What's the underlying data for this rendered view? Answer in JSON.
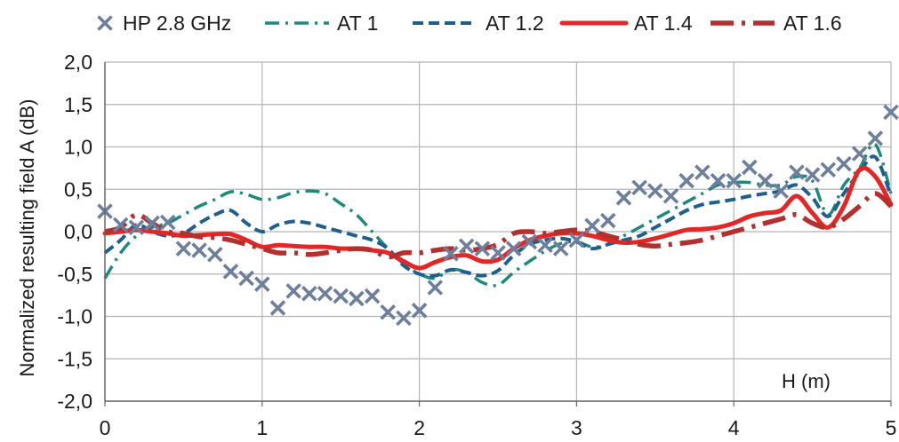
{
  "chart_data": {
    "type": "line",
    "title": "",
    "xlabel": "H (m)",
    "ylabel": "Normalized resulting field A (dB)",
    "xlim": [
      0,
      5
    ],
    "ylim": [
      -2.0,
      2.0
    ],
    "x_ticks": [
      0,
      1,
      2,
      3,
      4,
      5
    ],
    "x_tick_labels": [
      "0",
      "1",
      "2",
      "3",
      "4",
      "5"
    ],
    "y_ticks": [
      2.0,
      1.5,
      1.0,
      0.5,
      0.0,
      -0.5,
      -1.0,
      -1.5,
      -2.0
    ],
    "y_tick_labels": [
      "2,0",
      "1,5",
      "1,0",
      "0,5",
      "0,0",
      "-0,5",
      "-1,0",
      "-1,5",
      "-2,0"
    ],
    "grid": true,
    "legend_position": "top",
    "series": [
      {
        "name": "HP 2.8 GHz",
        "style": "markers-x",
        "color": "#6d7f9c",
        "x": [
          0.0,
          0.1,
          0.2,
          0.3,
          0.4,
          0.5,
          0.6,
          0.7,
          0.8,
          0.9,
          1.0,
          1.1,
          1.2,
          1.3,
          1.4,
          1.5,
          1.6,
          1.7,
          1.8,
          1.9,
          2.0,
          2.1,
          2.2,
          2.3,
          2.4,
          2.5,
          2.6,
          2.7,
          2.8,
          2.9,
          3.0,
          3.1,
          3.2,
          3.3,
          3.4,
          3.5,
          3.6,
          3.7,
          3.8,
          3.9,
          4.0,
          4.1,
          4.2,
          4.3,
          4.4,
          4.5,
          4.6,
          4.7,
          4.8,
          4.9,
          5.0
        ],
        "y": [
          0.24,
          0.08,
          0.05,
          0.1,
          0.11,
          -0.2,
          -0.22,
          -0.27,
          -0.47,
          -0.55,
          -0.62,
          -0.9,
          -0.7,
          -0.73,
          -0.73,
          -0.76,
          -0.79,
          -0.76,
          -0.95,
          -1.02,
          -0.93,
          -0.66,
          -0.26,
          -0.17,
          -0.2,
          -0.25,
          -0.2,
          -0.12,
          -0.16,
          -0.2,
          -0.1,
          0.07,
          0.13,
          0.4,
          0.52,
          0.48,
          0.42,
          0.6,
          0.7,
          0.6,
          0.6,
          0.76,
          0.6,
          0.48,
          0.7,
          0.67,
          0.73,
          0.8,
          0.92,
          1.1,
          1.41
        ]
      },
      {
        "name": "AT 1",
        "style": "dash-dot",
        "color": "#1c8a7c",
        "x": [
          0.0,
          0.1,
          0.2,
          0.3,
          0.4,
          0.5,
          0.6,
          0.7,
          0.8,
          0.9,
          1.0,
          1.1,
          1.2,
          1.3,
          1.4,
          1.5,
          1.6,
          1.7,
          1.8,
          1.9,
          2.0,
          2.1,
          2.2,
          2.3,
          2.4,
          2.5,
          2.6,
          2.7,
          2.8,
          2.9,
          3.0,
          3.1,
          3.2,
          3.3,
          3.4,
          3.5,
          3.6,
          3.7,
          3.8,
          3.9,
          4.0,
          4.1,
          4.2,
          4.3,
          4.4,
          4.5,
          4.6,
          4.7,
          4.8,
          4.9,
          5.0
        ],
        "y": [
          -0.55,
          -0.25,
          -0.05,
          0.05,
          0.1,
          0.2,
          0.3,
          0.38,
          0.47,
          0.44,
          0.38,
          0.4,
          0.46,
          0.48,
          0.45,
          0.33,
          0.2,
          0.0,
          -0.2,
          -0.38,
          -0.5,
          -0.55,
          -0.45,
          -0.48,
          -0.6,
          -0.63,
          -0.48,
          -0.35,
          -0.23,
          -0.14,
          -0.12,
          -0.18,
          -0.15,
          -0.05,
          0.05,
          0.15,
          0.25,
          0.35,
          0.45,
          0.55,
          0.58,
          0.58,
          0.55,
          0.55,
          0.65,
          0.6,
          0.2,
          0.55,
          0.75,
          1.03,
          0.45
        ]
      },
      {
        "name": "AT 1.2",
        "style": "dashed",
        "color": "#1f5f8f",
        "x": [
          0.0,
          0.1,
          0.2,
          0.3,
          0.4,
          0.5,
          0.6,
          0.7,
          0.8,
          0.9,
          1.0,
          1.1,
          1.2,
          1.3,
          1.4,
          1.5,
          1.6,
          1.7,
          1.8,
          1.9,
          2.0,
          2.1,
          2.2,
          2.3,
          2.4,
          2.5,
          2.6,
          2.7,
          2.8,
          2.9,
          3.0,
          3.1,
          3.2,
          3.3,
          3.4,
          3.5,
          3.6,
          3.7,
          3.8,
          3.9,
          4.0,
          4.1,
          4.2,
          4.3,
          4.4,
          4.5,
          4.6,
          4.7,
          4.8,
          4.9,
          5.0
        ],
        "y": [
          -0.25,
          -0.1,
          0.08,
          0.0,
          -0.05,
          -0.02,
          0.1,
          0.2,
          0.25,
          0.1,
          0.0,
          0.08,
          0.12,
          0.1,
          0.05,
          0.0,
          -0.05,
          -0.1,
          -0.2,
          -0.4,
          -0.5,
          -0.52,
          -0.45,
          -0.48,
          -0.52,
          -0.46,
          -0.28,
          -0.15,
          -0.1,
          -0.08,
          -0.12,
          -0.2,
          -0.15,
          -0.1,
          -0.05,
          0.05,
          0.15,
          0.25,
          0.32,
          0.35,
          0.38,
          0.42,
          0.45,
          0.48,
          0.55,
          0.4,
          0.18,
          0.45,
          0.7,
          0.88,
          0.42
        ]
      },
      {
        "name": "AT 1.4",
        "style": "solid",
        "color": "#e32626",
        "x": [
          0.0,
          0.1,
          0.2,
          0.3,
          0.4,
          0.5,
          0.6,
          0.7,
          0.8,
          0.9,
          1.0,
          1.1,
          1.2,
          1.3,
          1.4,
          1.5,
          1.6,
          1.7,
          1.8,
          1.9,
          2.0,
          2.1,
          2.2,
          2.3,
          2.4,
          2.5,
          2.6,
          2.7,
          2.8,
          2.9,
          3.0,
          3.1,
          3.2,
          3.3,
          3.4,
          3.5,
          3.6,
          3.7,
          3.8,
          3.9,
          4.0,
          4.1,
          4.2,
          4.3,
          4.4,
          4.5,
          4.6,
          4.7,
          4.8,
          4.9,
          5.0
        ],
        "y": [
          -0.02,
          0.0,
          0.02,
          0.0,
          -0.02,
          -0.05,
          -0.04,
          -0.03,
          -0.03,
          -0.1,
          -0.18,
          -0.16,
          -0.17,
          -0.18,
          -0.18,
          -0.2,
          -0.2,
          -0.22,
          -0.25,
          -0.35,
          -0.43,
          -0.36,
          -0.3,
          -0.28,
          -0.35,
          -0.33,
          -0.2,
          -0.1,
          -0.05,
          -0.02,
          -0.02,
          -0.05,
          -0.1,
          -0.13,
          -0.12,
          -0.08,
          -0.03,
          0.02,
          0.03,
          0.05,
          0.1,
          0.18,
          0.22,
          0.25,
          0.42,
          0.22,
          0.05,
          0.3,
          0.73,
          0.65,
          0.32
        ]
      },
      {
        "name": "AT 1.6",
        "style": "long-dash-dot",
        "color": "#b3302e",
        "x": [
          0.0,
          0.1,
          0.2,
          0.3,
          0.4,
          0.5,
          0.6,
          0.7,
          0.8,
          0.9,
          1.0,
          1.1,
          1.2,
          1.3,
          1.4,
          1.5,
          1.6,
          1.7,
          1.8,
          1.9,
          2.0,
          2.1,
          2.2,
          2.3,
          2.4,
          2.5,
          2.6,
          2.7,
          2.8,
          2.9,
          3.0,
          3.1,
          3.2,
          3.3,
          3.4,
          3.5,
          3.6,
          3.7,
          3.8,
          3.9,
          4.0,
          4.1,
          4.2,
          4.3,
          4.4,
          4.5,
          4.6,
          4.7,
          4.8,
          4.9,
          5.0
        ],
        "y": [
          0.0,
          0.05,
          0.2,
          0.1,
          0.0,
          -0.02,
          -0.06,
          -0.07,
          -0.1,
          -0.15,
          -0.2,
          -0.25,
          -0.25,
          -0.27,
          -0.25,
          -0.22,
          -0.2,
          -0.22,
          -0.3,
          -0.25,
          -0.25,
          -0.22,
          -0.2,
          -0.22,
          -0.2,
          -0.15,
          -0.02,
          0.0,
          -0.02,
          0.0,
          0.02,
          0.0,
          -0.05,
          -0.1,
          -0.15,
          -0.17,
          -0.15,
          -0.13,
          -0.1,
          -0.05,
          0.0,
          0.05,
          0.1,
          0.15,
          0.2,
          0.1,
          0.05,
          0.15,
          0.3,
          0.45,
          0.3
        ]
      }
    ]
  }
}
